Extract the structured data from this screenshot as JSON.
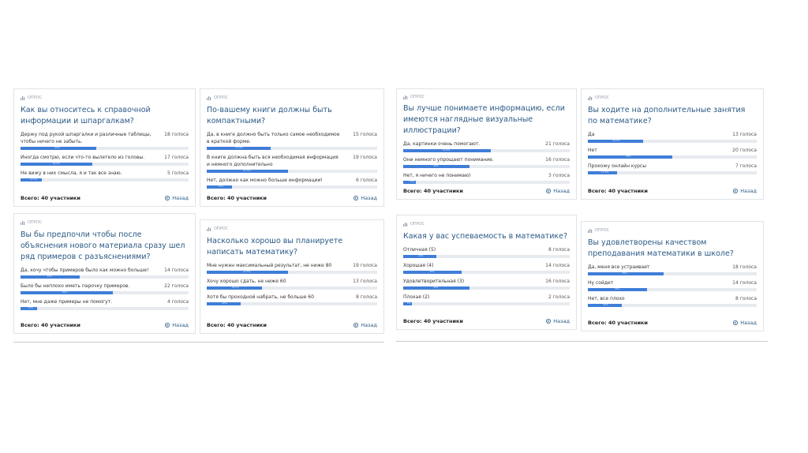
{
  "cards": [
    {
      "label": "ОПРОС",
      "question": "Как вы относитесь к справочной информации и шпаргалкам?",
      "options": [
        {
          "text": "Держу под рукой шпаргалки и различные таблицы, чтобы ничего не забыть.",
          "votes": "18 голоса",
          "percent": 45,
          "percent_label": "45%"
        },
        {
          "text": "Иногда смотрю, если что-то вылетело из головы.",
          "votes": "17 голоса",
          "percent": 42.5,
          "percent_label": "42.5%"
        },
        {
          "text": "Не вижу в них смысла, я и так все знаю.",
          "votes": "5 голоса",
          "percent": 12.5,
          "percent_label": "12.5%"
        }
      ],
      "total": "Всего: 40 участники",
      "back": "Назад"
    },
    {
      "label": "ОПРОС",
      "question": "По-вашему книги должны быть компактными?",
      "options": [
        {
          "text": "Да, в книге должно быть только самое необходимое в краткой форме.",
          "votes": "15 голоса",
          "percent": 37.5,
          "percent_label": "37.5%"
        },
        {
          "text": "В книге должна быть вся необходимая информация и немного дополнительно",
          "votes": "19 голоса",
          "percent": 47.5,
          "percent_label": "47.5%"
        },
        {
          "text": "Нет, должно как можно больше информации!",
          "votes": "6 голоса",
          "percent": 15,
          "percent_label": "15%"
        }
      ],
      "total": "Всего: 40 участники",
      "back": "Назад"
    },
    {
      "label": "ОПРОС",
      "question": "Вы лучше понимаете информацию, если имеются наглядные визуальные иллюстрации?",
      "options": [
        {
          "text": "Да, картинки очень помогают.",
          "votes": "21 голоса",
          "percent": 52.5,
          "percent_label": "52.5%"
        },
        {
          "text": "Они немного упрощают понимание.",
          "votes": "16 голоса",
          "percent": 40,
          "percent_label": "40%"
        },
        {
          "text": "Нет, я ничего не понимаю)",
          "votes": "3 голоса",
          "percent": 7.5,
          "percent_label": "7.5%"
        }
      ],
      "total": "Всего: 40 участники",
      "back": "Назад"
    },
    {
      "label": "ОПРОС",
      "question": "Вы ходите на дополнительные занятия по математике?",
      "options": [
        {
          "text": "Да",
          "votes": "13 голоса",
          "percent": 32.5,
          "percent_label": "32.5%"
        },
        {
          "text": "Нет",
          "votes": "20 голоса",
          "percent": 50,
          "percent_label": "50%"
        },
        {
          "text": "Прохожу онлайн курсы",
          "votes": "7 голоса",
          "percent": 17.5,
          "percent_label": "17.5%"
        }
      ],
      "total": "Всего: 40 участники",
      "back": "Назад"
    },
    {
      "label": "ОПРОС",
      "question": "Вы бы предпочли чтобы после объяснения нового материала сразу шел ряд примеров с разъяснениями?",
      "options": [
        {
          "text": "Да, хочу чтобы примеров было как можно больше!",
          "votes": "14 голоса",
          "percent": 35,
          "percent_label": "35%"
        },
        {
          "text": "Было бы неплохо иметь парочку примеров.",
          "votes": "22 голоса",
          "percent": 55,
          "percent_label": "55%"
        },
        {
          "text": "Нет, мне даже примеры не помогут.",
          "votes": "4 голоса",
          "percent": 10,
          "percent_label": "10%"
        }
      ],
      "total": "Всего: 40 участники",
      "back": "Назад"
    },
    {
      "label": "ОПРОС",
      "question": "Насколько хорошо вы планируете написать математику?",
      "options": [
        {
          "text": "Мне нужен максимальный результат, не ниже 80",
          "votes": "19 голоса",
          "percent": 47.5,
          "percent_label": "47.5%"
        },
        {
          "text": "Хочу хорошо сдать, не ниже 60",
          "votes": "13 голоса",
          "percent": 32.5,
          "percent_label": "32.5%"
        },
        {
          "text": "Хотя бы проходной набрать, не больше 60",
          "votes": "8 голоса",
          "percent": 20,
          "percent_label": "20%"
        }
      ],
      "total": "Всего: 40 участники",
      "back": "Назад"
    },
    {
      "label": "ОПРОС",
      "question": "Какая у вас успеваемость в математике?",
      "options": [
        {
          "text": "Отличная (5)",
          "votes": "8 голоса",
          "percent": 20,
          "percent_label": "20%"
        },
        {
          "text": "Хорошая (4)",
          "votes": "14 голоса",
          "percent": 35,
          "percent_label": "35%"
        },
        {
          "text": "Удовлетворительная (3)",
          "votes": "16 голоса",
          "percent": 40,
          "percent_label": "40%"
        },
        {
          "text": "Плохая (2)",
          "votes": "2 голоса",
          "percent": 5,
          "percent_label": "5%"
        }
      ],
      "total": "Всего: 40 участники",
      "back": "Назад"
    },
    {
      "label": "ОПРОС",
      "question": "Вы удовлетворены качеством преподавания математики в школе?",
      "options": [
        {
          "text": "Да, меня все устраивает",
          "votes": "18 голоса",
          "percent": 45,
          "percent_label": "45%"
        },
        {
          "text": "Ну сойдет",
          "votes": "14 голоса",
          "percent": 35,
          "percent_label": "35%"
        },
        {
          "text": "Нет, все плохо",
          "votes": "8 голоса",
          "percent": 20,
          "percent_label": "20%"
        }
      ],
      "total": "Всего: 40 участники",
      "back": "Назад"
    }
  ]
}
